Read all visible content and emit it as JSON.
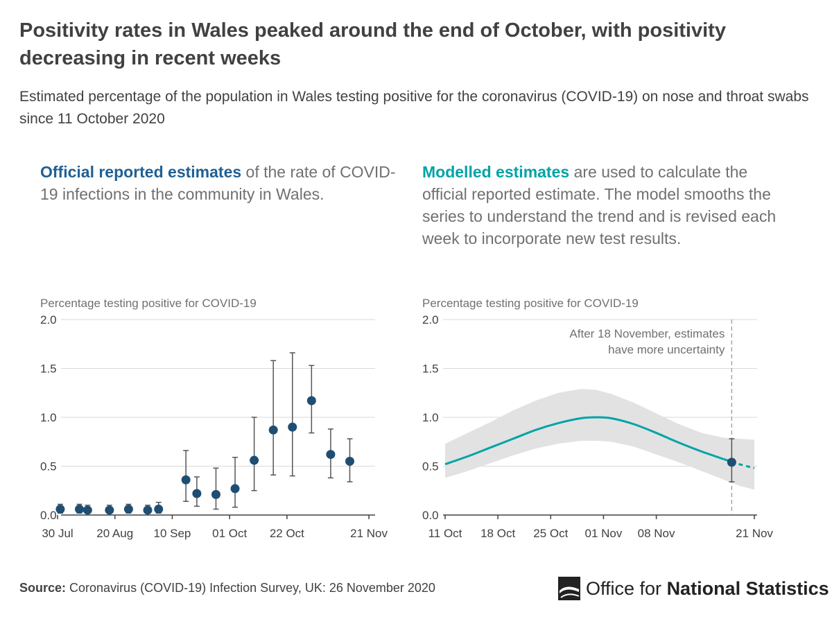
{
  "title": "Positivity rates in Wales peaked around the end of October, with positivity decreasing in recent weeks",
  "subtitle": "Estimated percentage of the population in Wales testing positive for the coronavirus (COVID-19) on nose and throat swabs since 11 October 2020",
  "left_panel": {
    "lead": "Official reported estimates",
    "rest": " of the rate of COVID-19 infections in the community in Wales."
  },
  "right_panel": {
    "lead": "Modelled estimates",
    "rest": " are used to calculate the official reported estimate. The model smooths the series to understand the trend and is revised each week to incorporate new test results."
  },
  "colors": {
    "dot": "#1f4e72",
    "model_line": "#00a3a6",
    "band": "#e2e2e2",
    "grid": "#d9d9d9",
    "axis": "#414042",
    "error_bar": "#555555"
  },
  "chart_data": [
    {
      "type": "scatter",
      "name": "official-estimates",
      "ylabel": "Percentage testing positive for COVID-19",
      "ylim": [
        0,
        2
      ],
      "yticks": [
        "0.0",
        "0.5",
        "1.0",
        "1.5",
        "2.0"
      ],
      "x_domain_days": [
        0,
        115
      ],
      "xticks": [
        {
          "label": "30 Jul",
          "day": 0
        },
        {
          "label": "20 Aug",
          "day": 21
        },
        {
          "label": "10 Sep",
          "day": 42
        },
        {
          "label": "01 Oct",
          "day": 63
        },
        {
          "label": "22 Oct",
          "day": 84
        },
        {
          "label": "21 Nov",
          "day": 114
        }
      ],
      "points": [
        {
          "day": 1,
          "value": 0.06,
          "lower": 0.02,
          "upper": 0.11
        },
        {
          "day": 8,
          "value": 0.06,
          "lower": 0.02,
          "upper": 0.11
        },
        {
          "day": 11,
          "value": 0.05,
          "lower": 0.02,
          "upper": 0.1
        },
        {
          "day": 19,
          "value": 0.05,
          "lower": 0.02,
          "upper": 0.1
        },
        {
          "day": 26,
          "value": 0.06,
          "lower": 0.02,
          "upper": 0.11
        },
        {
          "day": 33,
          "value": 0.05,
          "lower": 0.02,
          "upper": 0.1
        },
        {
          "day": 37,
          "value": 0.06,
          "lower": 0.02,
          "upper": 0.13
        },
        {
          "day": 47,
          "value": 0.36,
          "lower": 0.14,
          "upper": 0.66
        },
        {
          "day": 51,
          "value": 0.22,
          "lower": 0.09,
          "upper": 0.39
        },
        {
          "day": 58,
          "value": 0.21,
          "lower": 0.06,
          "upper": 0.48
        },
        {
          "day": 65,
          "value": 0.27,
          "lower": 0.08,
          "upper": 0.59
        },
        {
          "day": 72,
          "value": 0.56,
          "lower": 0.25,
          "upper": 1.0
        },
        {
          "day": 79,
          "value": 0.87,
          "lower": 0.41,
          "upper": 1.58
        },
        {
          "day": 86,
          "value": 0.9,
          "lower": 0.4,
          "upper": 1.66
        },
        {
          "day": 93,
          "value": 1.17,
          "lower": 0.84,
          "upper": 1.53
        },
        {
          "day": 100,
          "value": 0.62,
          "lower": 0.38,
          "upper": 0.88
        },
        {
          "day": 107,
          "value": 0.55,
          "lower": 0.34,
          "upper": 0.78
        }
      ]
    },
    {
      "type": "line",
      "name": "modelled-estimates",
      "ylabel": "Percentage testing positive for COVID-19",
      "ylim": [
        0,
        2
      ],
      "yticks": [
        "0.0",
        "0.5",
        "1.0",
        "1.5",
        "2.0"
      ],
      "x_domain_days": [
        0,
        41
      ],
      "xticks": [
        {
          "label": "11 Oct",
          "day": 0
        },
        {
          "label": "18 Oct",
          "day": 7
        },
        {
          "label": "25 Oct",
          "day": 14
        },
        {
          "label": "01 Nov",
          "day": 21
        },
        {
          "label": "08 Nov",
          "day": 28
        },
        {
          "label": "21 Nov",
          "day": 41
        }
      ],
      "annotation": {
        "line1": "After 18 November, estimates",
        "line2": "have more uncertainty",
        "day": 38
      },
      "model": [
        {
          "day": 0,
          "value": 0.52,
          "lower": 0.38,
          "upper": 0.73
        },
        {
          "day": 3,
          "value": 0.6,
          "lower": 0.45,
          "upper": 0.84
        },
        {
          "day": 6,
          "value": 0.69,
          "lower": 0.53,
          "upper": 0.95
        },
        {
          "day": 9,
          "value": 0.78,
          "lower": 0.61,
          "upper": 1.07
        },
        {
          "day": 12,
          "value": 0.87,
          "lower": 0.68,
          "upper": 1.17
        },
        {
          "day": 15,
          "value": 0.94,
          "lower": 0.73,
          "upper": 1.25
        },
        {
          "day": 18,
          "value": 0.99,
          "lower": 0.76,
          "upper": 1.29
        },
        {
          "day": 20,
          "value": 1.0,
          "lower": 0.76,
          "upper": 1.28
        },
        {
          "day": 22,
          "value": 0.99,
          "lower": 0.75,
          "upper": 1.24
        },
        {
          "day": 25,
          "value": 0.93,
          "lower": 0.7,
          "upper": 1.15
        },
        {
          "day": 28,
          "value": 0.84,
          "lower": 0.62,
          "upper": 1.04
        },
        {
          "day": 31,
          "value": 0.74,
          "lower": 0.54,
          "upper": 0.93
        },
        {
          "day": 34,
          "value": 0.65,
          "lower": 0.45,
          "upper": 0.84
        },
        {
          "day": 37,
          "value": 0.57,
          "lower": 0.36,
          "upper": 0.79
        },
        {
          "day": 39,
          "value": 0.52,
          "lower": 0.3,
          "upper": 0.78
        },
        {
          "day": 41,
          "value": 0.48,
          "lower": 0.26,
          "upper": 0.77
        }
      ],
      "solid_until_day": 38,
      "point": {
        "day": 38,
        "value": 0.54,
        "lower": 0.34,
        "upper": 0.78
      }
    }
  ],
  "source": {
    "label": "Source:",
    "text": " Coronavirus (COVID-19) Infection Survey, UK: 26 November 2020"
  },
  "logo": {
    "light": "Office for",
    "bold": "National Statistics"
  }
}
